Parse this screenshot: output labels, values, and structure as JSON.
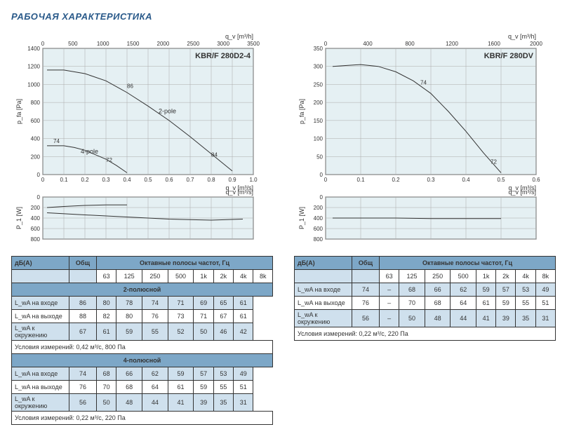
{
  "page_title": "РАБОЧАЯ ХАРАКТЕРИСТИКА",
  "left": {
    "chart": {
      "title": "KBR/F 280D2-4",
      "plot_bg": "#e5f0f3",
      "grid_color": "#aaaaaa",
      "curve_color": "#333333",
      "y_label": "p_fa [Pa]",
      "y_min": 0,
      "y_max": 1400,
      "y_step": 200,
      "x_label_bottom": "q_v [m³/s]",
      "x_min": 0,
      "x_max": 1,
      "x_step": 0.1,
      "x_label_top": "q_v [m³/h]",
      "x_top_min": 0,
      "x_top_max": 3500,
      "x_top_step": 500,
      "curve_2pole_label": "2-pole",
      "curve_4pole_label": "4-pole",
      "point_labels": [
        "74",
        "72",
        "86",
        "84"
      ],
      "curve_2pole": [
        [
          0.02,
          1160
        ],
        [
          0.1,
          1160
        ],
        [
          0.2,
          1120
        ],
        [
          0.3,
          1040
        ],
        [
          0.4,
          910
        ],
        [
          0.5,
          760
        ],
        [
          0.6,
          600
        ],
        [
          0.7,
          420
        ],
        [
          0.8,
          230
        ],
        [
          0.9,
          40
        ]
      ],
      "curve_4pole": [
        [
          0.02,
          320
        ],
        [
          0.1,
          320
        ],
        [
          0.15,
          300
        ],
        [
          0.2,
          270
        ],
        [
          0.25,
          220
        ],
        [
          0.3,
          170
        ],
        [
          0.35,
          100
        ],
        [
          0.4,
          20
        ]
      ],
      "power": {
        "y_label": "P_1 [W]",
        "y_min": 0,
        "y_max": 800,
        "y_step": 200,
        "curve_2pole": [
          [
            0.02,
            300
          ],
          [
            0.2,
            340
          ],
          [
            0.4,
            380
          ],
          [
            0.6,
            420
          ],
          [
            0.8,
            440
          ],
          [
            0.95,
            420
          ]
        ],
        "curve_4pole": [
          [
            0.02,
            200
          ],
          [
            0.1,
            180
          ],
          [
            0.2,
            160
          ],
          [
            0.3,
            150
          ],
          [
            0.4,
            150
          ]
        ]
      }
    },
    "table": {
      "hdr_db": "дБ(А)",
      "hdr_tot": "Общ",
      "hdr_bands": "Октавные полосы частот, Гц",
      "band_labels": [
        "63",
        "125",
        "250",
        "500",
        "1k",
        "2k",
        "4k",
        "8k"
      ],
      "section1_title": "2-полюсной",
      "section2_title": "4-полюсной",
      "row_labels": [
        "L_wA на входе",
        "L_wA на выходе",
        "L_wA к окружению"
      ],
      "sec1_rows": [
        [
          "86",
          "80",
          "78",
          "74",
          "71",
          "69",
          "65",
          "61"
        ],
        [
          "88",
          "82",
          "80",
          "76",
          "73",
          "71",
          "67",
          "61"
        ],
        [
          "67",
          "61",
          "59",
          "55",
          "52",
          "50",
          "46",
          "42"
        ]
      ],
      "sec1_note": "Условия измерений: 0,42 м³/с, 800 Па",
      "sec2_rows": [
        [
          "74",
          "68",
          "66",
          "62",
          "59",
          "57",
          "53",
          "49"
        ],
        [
          "76",
          "70",
          "68",
          "64",
          "61",
          "59",
          "55",
          "51"
        ],
        [
          "56",
          "50",
          "48",
          "44",
          "41",
          "39",
          "35",
          "31"
        ]
      ],
      "sec2_note": "Условия измерений: 0,22 м³/с, 220 Па"
    }
  },
  "right": {
    "chart": {
      "title": "KBR/F 280DV",
      "plot_bg": "#e5f0f3",
      "y_label": "p_fa [Pa]",
      "y_min": 0,
      "y_max": 350,
      "y_step": 50,
      "x_label_bottom": "q_v [m³/s]",
      "x_min": 0,
      "x_max": 0.6,
      "x_step": 0.1,
      "x_label_top": "q_v [m³/h]",
      "x_top_min": 0,
      "x_top_max": 2000,
      "x_top_step": 400,
      "point_labels": [
        "74",
        "72"
      ],
      "curve": [
        [
          0.02,
          300
        ],
        [
          0.1,
          305
        ],
        [
          0.15,
          300
        ],
        [
          0.2,
          285
        ],
        [
          0.25,
          260
        ],
        [
          0.3,
          225
        ],
        [
          0.35,
          175
        ],
        [
          0.4,
          120
        ],
        [
          0.45,
          60
        ],
        [
          0.5,
          5
        ]
      ],
      "power": {
        "y_label": "P_1 [W]",
        "y_min": 0,
        "y_max": 800,
        "y_step": 200,
        "curve": [
          [
            0.02,
            400
          ],
          [
            0.1,
            400
          ],
          [
            0.2,
            400
          ],
          [
            0.3,
            410
          ],
          [
            0.4,
            410
          ],
          [
            0.5,
            410
          ]
        ]
      }
    },
    "table": {
      "hdr_db": "дБ(А)",
      "hdr_tot": "Общ",
      "hdr_bands": "Октавные полосы частот, Гц",
      "band_labels": [
        "63",
        "125",
        "250",
        "500",
        "1k",
        "2k",
        "4k",
        "8k"
      ],
      "row_labels": [
        "L_wA на входе",
        "L_wA на выходе",
        "L_wA к окружению"
      ],
      "rows": [
        [
          "74",
          "–",
          "68",
          "66",
          "62",
          "59",
          "57",
          "53",
          "49"
        ],
        [
          "76",
          "–",
          "70",
          "68",
          "64",
          "61",
          "59",
          "55",
          "51"
        ],
        [
          "56",
          "–",
          "50",
          "48",
          "44",
          "41",
          "39",
          "35",
          "31"
        ]
      ],
      "note": "Условия измерений: 0,22 м³/с, 220 Па"
    }
  }
}
